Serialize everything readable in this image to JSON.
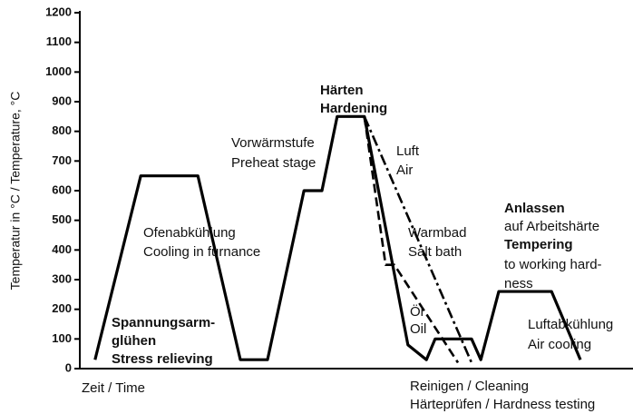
{
  "chart_data": {
    "type": "line",
    "y_label": "Temperatur  in °C / Temperature, °C",
    "x_label": "Zeit / Time",
    "ylim": [
      0,
      1200
    ],
    "yticks": [
      0,
      100,
      200,
      300,
      400,
      500,
      600,
      700,
      800,
      900,
      1000,
      1100,
      1200
    ],
    "xlim": [
      0,
      100
    ],
    "series": [
      {
        "color": "#000000",
        "style": "solid",
        "x": [
          2.8,
          11.2,
          21.7,
          29.5,
          34.5,
          41.2,
          44.5,
          47.3,
          52.3,
          60.3,
          63.7,
          65.3,
          72,
          73.7,
          77,
          86.7,
          92
        ],
        "values": [
          30,
          650,
          650,
          30,
          30,
          600,
          600,
          850,
          850,
          80,
          30,
          100,
          100,
          30,
          260,
          260,
          30
        ]
      },
      {
        "color": "#000000",
        "style": "dashed",
        "x": [
          52.3,
          56.2,
          57.8,
          69.5
        ],
        "values": [
          850,
          350,
          350,
          20
        ]
      },
      {
        "color": "#000000",
        "style": "dashdot",
        "x": [
          52.3,
          72
        ],
        "values": [
          850,
          20
        ]
      }
    ],
    "annotations": [
      "Härten",
      "Hardening",
      "Vorwärmstufe",
      "Preheat stage",
      "Luft",
      "Air",
      "Ofenabkühlung",
      "Cooling in furnance",
      "Warmbad",
      "Salt bath",
      "Anlassen",
      "auf Arbeitshärte",
      "Tempering",
      "to working hard-",
      "ness",
      "Öl",
      "Oil",
      "Spannungsarm-",
      "glühen",
      "Stress relieving",
      "Luftabkühlung",
      "Air cooling",
      "Reinigen / Cleaning",
      "Härteprüfen / Hardness testing"
    ]
  }
}
